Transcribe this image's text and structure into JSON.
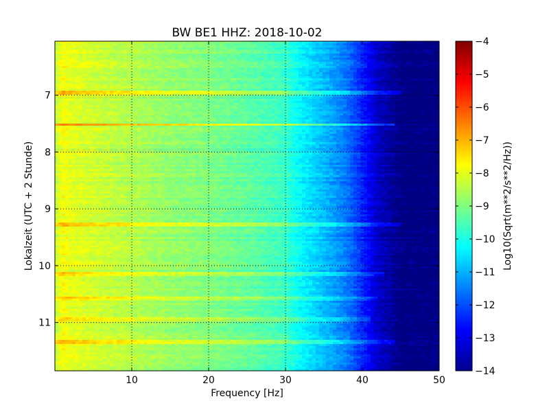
{
  "chart_data": {
    "type": "heatmap",
    "title": "BW BE1 HHZ: 2018-10-02",
    "xlabel": "Frequency [Hz]",
    "ylabel": "Lokalzeit (UTC + 2 Stunde)",
    "xlim": [
      0,
      50
    ],
    "ylim": [
      6.05,
      11.85
    ],
    "y_inverted": true,
    "x_ticks": [
      10,
      20,
      30,
      40,
      50
    ],
    "y_ticks": [
      7,
      8,
      9,
      10,
      11
    ],
    "grid": true,
    "colormap": "jet",
    "colorbar": {
      "label": "Log10(Sqrt(m**2/s**2/Hz))",
      "range": [
        -14,
        -4
      ],
      "ticks": [
        -4,
        -5,
        -6,
        -7,
        -8,
        -9,
        -10,
        -11,
        -12,
        -13,
        -14
      ]
    },
    "spectrum_profile": {
      "frequency_hz": [
        0,
        1,
        2,
        5,
        10,
        15,
        20,
        25,
        30,
        32,
        35,
        38,
        40,
        42,
        45,
        50
      ],
      "log10_amplitude": [
        -8.4,
        -7.8,
        -8.0,
        -8.2,
        -8.5,
        -8.8,
        -9.0,
        -9.3,
        -9.7,
        -10.3,
        -10.9,
        -11.6,
        -12.4,
        -13.3,
        -14.0,
        -14.0
      ]
    },
    "bands": [
      {
        "time": 6.95,
        "strength": 0.9,
        "max_freq_hz": 45
      },
      {
        "time": 7.52,
        "strength": 1.2,
        "max_freq_hz": 44
      },
      {
        "time": 9.28,
        "strength": 0.9,
        "max_freq_hz": 45
      },
      {
        "time": 10.15,
        "strength": 0.7,
        "max_freq_hz": 43
      },
      {
        "time": 10.58,
        "strength": 0.6,
        "max_freq_hz": 42
      },
      {
        "time": 10.95,
        "strength": 0.5,
        "max_freq_hz": 41
      },
      {
        "time": 11.33,
        "strength": 0.7,
        "max_freq_hz": 44
      }
    ]
  }
}
